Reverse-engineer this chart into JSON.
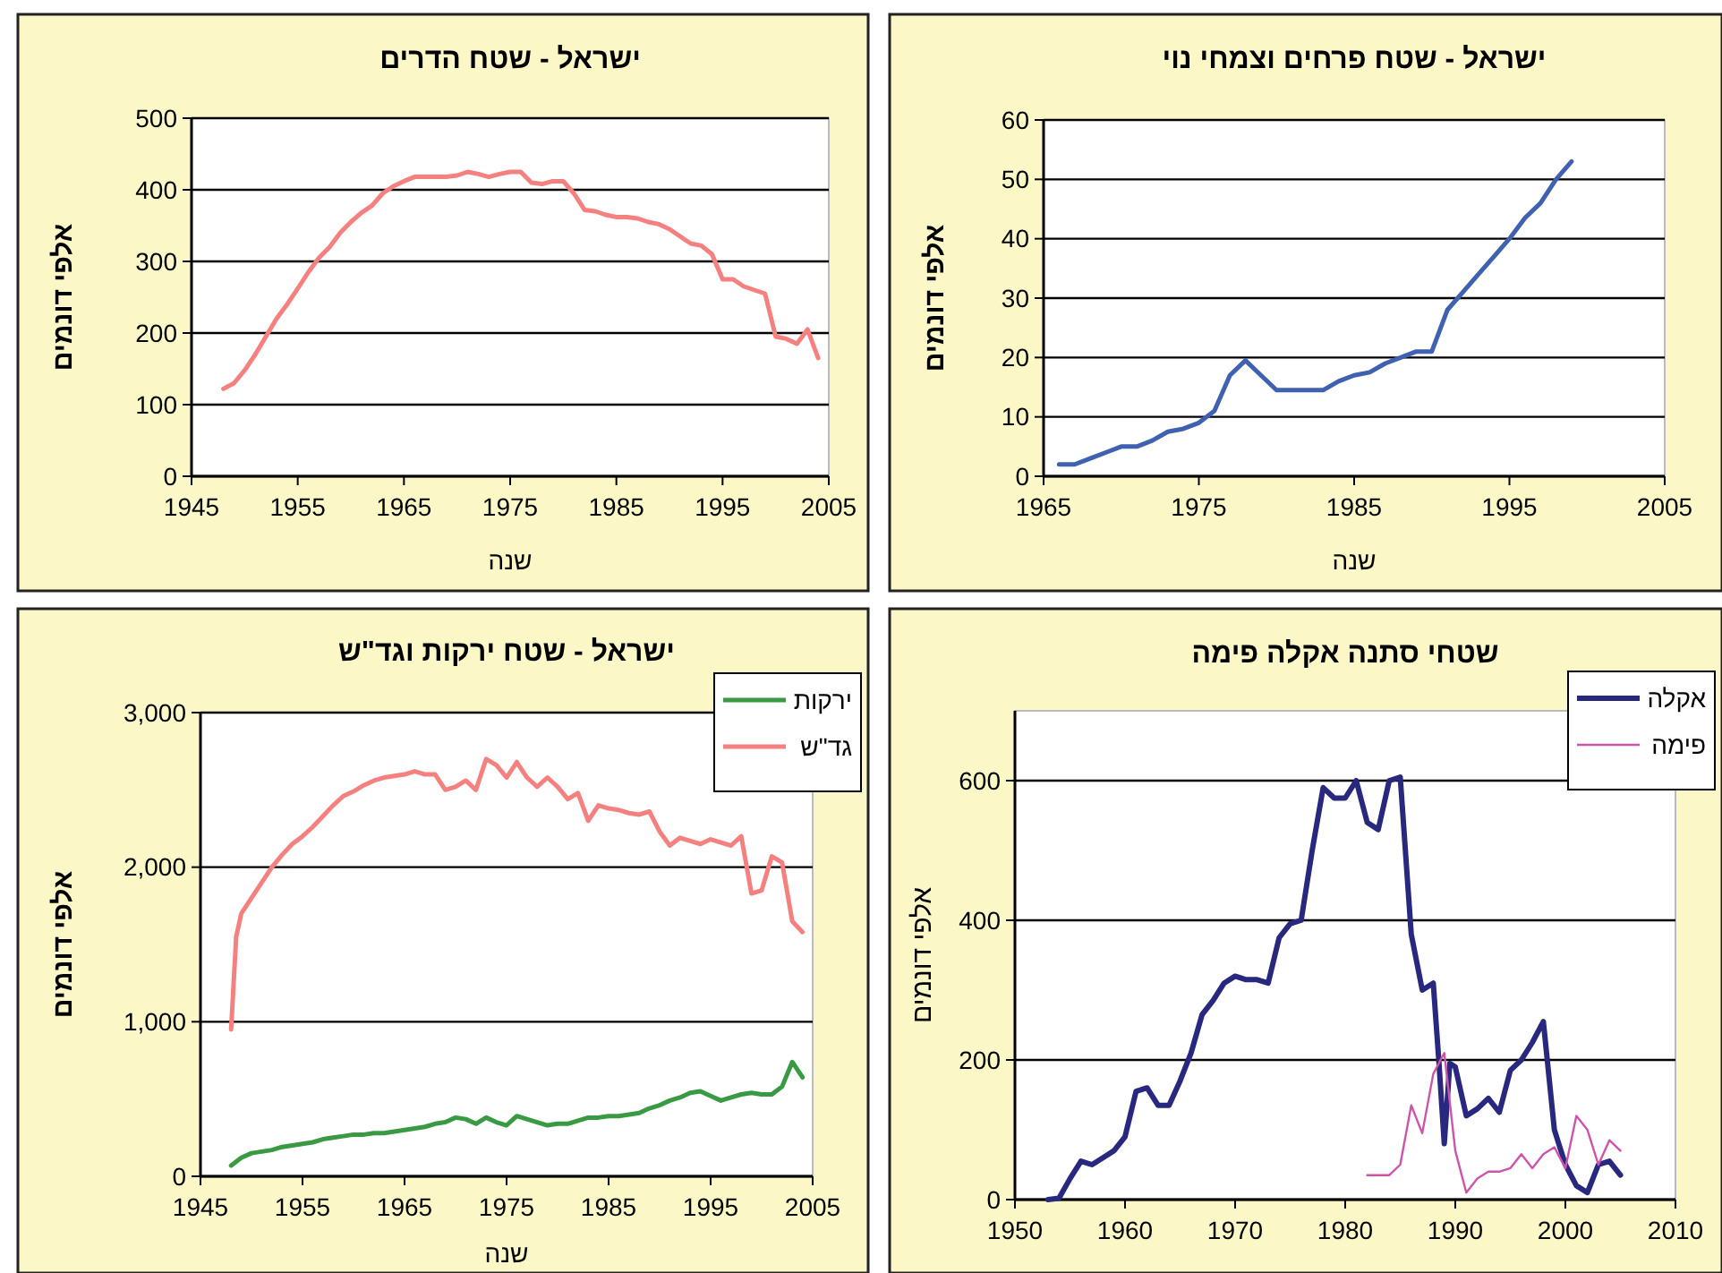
{
  "chart_data": [
    {
      "type": "line",
      "title": "ישראל - שטח הדרים",
      "xlabel": "שנה",
      "ylabel": "אלפי דונמים",
      "xlim": [
        1945,
        2005
      ],
      "xticks": [
        1945,
        1955,
        1965,
        1975,
        1985,
        1995,
        2005
      ],
      "ylim": [
        0,
        500
      ],
      "yticks": [
        0,
        100,
        200,
        300,
        400,
        500
      ],
      "grid": "y",
      "legend": false,
      "x": [
        1948,
        1949,
        1950,
        1951,
        1952,
        1953,
        1954,
        1955,
        1956,
        1957,
        1958,
        1959,
        1960,
        1961,
        1962,
        1963,
        1964,
        1965,
        1966,
        1967,
        1968,
        1969,
        1970,
        1971,
        1972,
        1973,
        1974,
        1975,
        1976,
        1977,
        1978,
        1979,
        1980,
        1981,
        1982,
        1983,
        1984,
        1985,
        1986,
        1987,
        1988,
        1989,
        1990,
        1991,
        1992,
        1993,
        1994,
        1995,
        1996,
        1997,
        1998,
        1999,
        2000,
        2001,
        2002,
        2003,
        2004
      ],
      "series": [
        {
          "color": "#f4807f",
          "values": [
            122,
            130,
            148,
            170,
            195,
            220,
            240,
            262,
            285,
            305,
            320,
            340,
            355,
            368,
            378,
            395,
            405,
            412,
            418,
            418,
            418,
            418,
            420,
            425,
            422,
            418,
            422,
            425,
            425,
            410,
            408,
            412,
            412,
            395,
            372,
            370,
            365,
            362,
            362,
            360,
            355,
            352,
            345,
            335,
            325,
            322,
            310,
            275,
            275,
            265,
            260,
            255,
            195,
            192,
            185,
            205,
            165
          ]
        }
      ]
    },
    {
      "type": "line",
      "title": "ישראל - שטח פרחים וצמחי נוי",
      "xlabel": "שנה",
      "ylabel": "אלפי דונמים",
      "xlim": [
        1965,
        2005
      ],
      "xticks": [
        1965,
        1975,
        1985,
        1995,
        2005
      ],
      "ylim": [
        0,
        60
      ],
      "yticks": [
        0,
        10,
        20,
        30,
        40,
        50,
        60
      ],
      "grid": "y",
      "legend": false,
      "x": [
        1966,
        1967,
        1968,
        1969,
        1970,
        1971,
        1972,
        1973,
        1974,
        1975,
        1976,
        1977,
        1978,
        1979,
        1980,
        1981,
        1982,
        1983,
        1984,
        1985,
        1986,
        1987,
        1988,
        1989,
        1990,
        1991,
        1992,
        1993,
        1994,
        1995,
        1996,
        1997,
        1998,
        1999
      ],
      "series": [
        {
          "color": "#4060b0",
          "values": [
            2,
            2,
            3,
            4,
            5,
            5,
            6,
            7.5,
            8,
            9,
            11,
            17,
            19.5,
            17,
            14.5,
            14.5,
            14.5,
            14.5,
            16,
            17,
            17.5,
            19,
            20,
            21,
            21,
            28,
            31,
            34,
            37,
            40,
            43.5,
            46,
            50,
            53
          ]
        }
      ]
    },
    {
      "type": "line",
      "title": "ישראל - שטח ירקות וגד\"ש",
      "xlabel": "שנה",
      "ylabel": "אלפי דונמים",
      "xlim": [
        1945,
        2005
      ],
      "xticks": [
        1945,
        1955,
        1965,
        1975,
        1985,
        1995,
        2005
      ],
      "ylim": [
        0,
        3000
      ],
      "yticks": [
        0,
        {
          "value": 1000,
          "label": "1,000"
        },
        {
          "value": 2000,
          "label": "2,000"
        },
        {
          "value": 3000,
          "label": "3,000"
        }
      ],
      "grid": "y",
      "legend": "top right",
      "series": [
        {
          "name": "ירקות",
          "color": "#3a9a44",
          "x": [
            1948,
            1949,
            1950,
            1951,
            1952,
            1953,
            1954,
            1955,
            1956,
            1957,
            1958,
            1959,
            1960,
            1961,
            1962,
            1963,
            1964,
            1965,
            1966,
            1967,
            1968,
            1969,
            1970,
            1971,
            1972,
            1973,
            1974,
            1975,
            1976,
            1977,
            1978,
            1979,
            1980,
            1981,
            1982,
            1983,
            1984,
            1985,
            1986,
            1987,
            1988,
            1989,
            1990,
            1991,
            1992,
            1993,
            1994,
            1995,
            1996,
            1997,
            1998,
            1999,
            2000,
            2001,
            2002,
            2003,
            2004
          ],
          "values": [
            70,
            120,
            150,
            160,
            170,
            190,
            200,
            210,
            220,
            240,
            250,
            260,
            270,
            270,
            280,
            280,
            290,
            300,
            310,
            320,
            340,
            350,
            380,
            370,
            340,
            380,
            350,
            330,
            390,
            370,
            350,
            330,
            340,
            340,
            360,
            380,
            380,
            390,
            390,
            400,
            410,
            440,
            460,
            490,
            510,
            540,
            550,
            520,
            490,
            510,
            530,
            540,
            530,
            530,
            580,
            740,
            640
          ]
        },
        {
          "name": "גד\"ש",
          "color": "#f4807f",
          "x": [
            1948,
            1948.5,
            1949,
            1950,
            1951,
            1952,
            1953,
            1954,
            1955,
            1956,
            1957,
            1958,
            1959,
            1960,
            1961,
            1962,
            1963,
            1964,
            1965,
            1966,
            1967,
            1968,
            1969,
            1970,
            1971,
            1972,
            1973,
            1974,
            1975,
            1976,
            1977,
            1978,
            1979,
            1980,
            1981,
            1982,
            1983,
            1984,
            1985,
            1986,
            1987,
            1988,
            1989,
            1990,
            1991,
            1992,
            1993,
            1994,
            1995,
            1996,
            1997,
            1998,
            1999,
            2000,
            2001,
            2002,
            2003,
            2004
          ],
          "values": [
            950,
            1550,
            1700,
            1800,
            1900,
            2000,
            2080,
            2150,
            2200,
            2260,
            2330,
            2400,
            2460,
            2490,
            2530,
            2560,
            2580,
            2590,
            2600,
            2620,
            2600,
            2600,
            2500,
            2520,
            2560,
            2500,
            2700,
            2660,
            2580,
            2680,
            2580,
            2520,
            2580,
            2520,
            2440,
            2480,
            2300,
            2400,
            2380,
            2370,
            2350,
            2340,
            2360,
            2230,
            2140,
            2190,
            2170,
            2150,
            2180,
            2160,
            2140,
            2200,
            1830,
            1850,
            2070,
            2030,
            1650,
            1580
          ]
        }
      ]
    },
    {
      "type": "line",
      "title": "שטחי סתנה אקלה פימה",
      "ylabel": "אלפי דונמים",
      "xlim": [
        1950,
        2010
      ],
      "xticks": [
        1950,
        1960,
        1970,
        1980,
        1990,
        2000,
        2010
      ],
      "ylim": [
        0,
        700
      ],
      "yticks": [
        0,
        200,
        400,
        600
      ],
      "grid": "y",
      "legend": "top right",
      "series": [
        {
          "name": "אקלה",
          "color": "#28287e",
          "x": [
            1953,
            1954,
            1955,
            1956,
            1957,
            1958,
            1959,
            1960,
            1961,
            1962,
            1963,
            1964,
            1965,
            1966,
            1967,
            1968,
            1969,
            1970,
            1971,
            1972,
            1973,
            1974,
            1975,
            1976,
            1977,
            1978,
            1979,
            1980,
            1981,
            1982,
            1983,
            1984,
            1985,
            1986,
            1987,
            1988,
            1988.5,
            1989,
            1989.5,
            1990,
            1991,
            1992,
            1993,
            1994,
            1995,
            1996,
            1997,
            1998,
            1999,
            2000,
            2001,
            2002,
            2003,
            2004,
            2005
          ],
          "values": [
            0,
            2,
            30,
            55,
            50,
            60,
            70,
            90,
            155,
            160,
            135,
            135,
            170,
            210,
            265,
            285,
            310,
            320,
            315,
            315,
            310,
            375,
            395,
            400,
            500,
            590,
            575,
            575,
            600,
            540,
            530,
            600,
            605,
            380,
            300,
            310,
            200,
            80,
            195,
            190,
            120,
            130,
            145,
            125,
            185,
            200,
            225,
            255,
            100,
            50,
            20,
            10,
            50,
            55,
            35
          ]
        },
        {
          "name": "פימה",
          "color": "#cc55aa",
          "x": [
            1982,
            1983,
            1984,
            1985,
            1986,
            1987,
            1988,
            1989,
            1990,
            1991,
            1992,
            1993,
            1994,
            1995,
            1996,
            1997,
            1998,
            1999,
            2000,
            2001,
            2002,
            2003,
            2004,
            2005
          ],
          "values": [
            35,
            35,
            35,
            50,
            135,
            95,
            180,
            210,
            70,
            10,
            30,
            40,
            40,
            45,
            65,
            45,
            65,
            75,
            45,
            120,
            100,
            50,
            85,
            70
          ]
        }
      ]
    }
  ]
}
